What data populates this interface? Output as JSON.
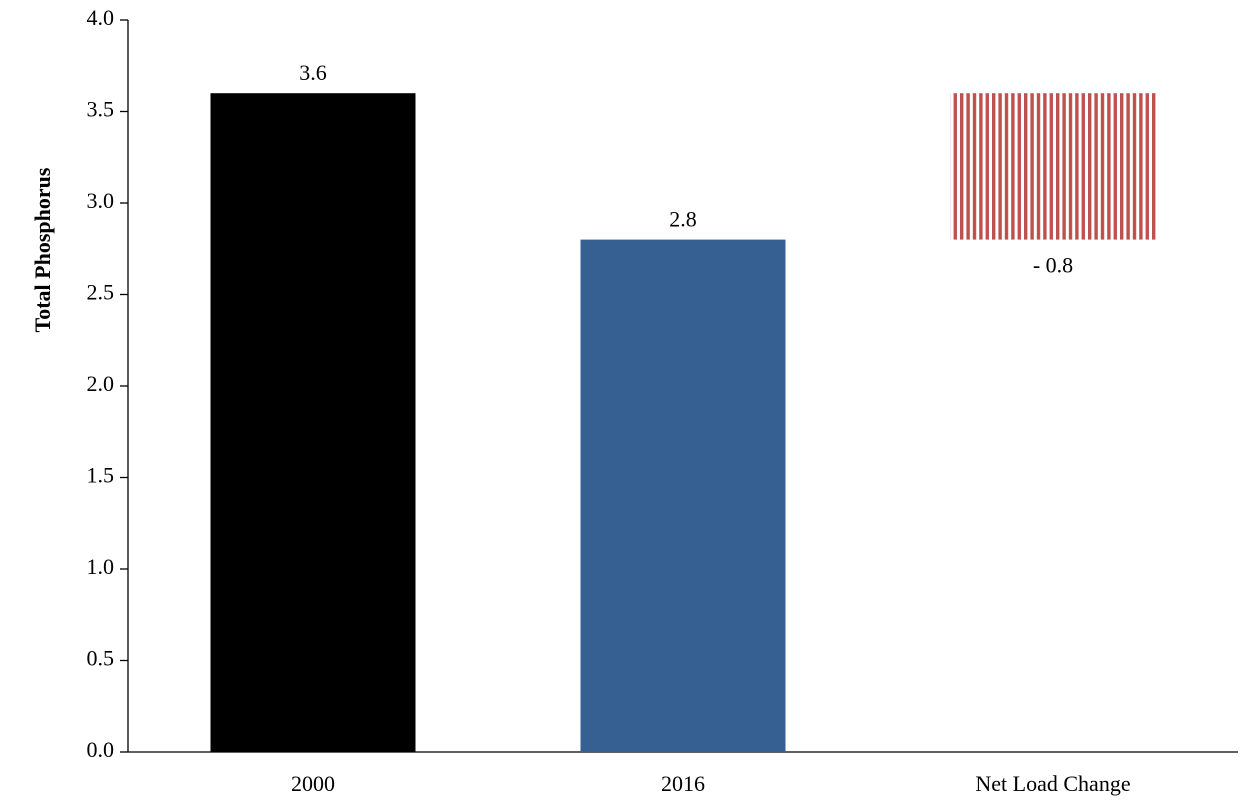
{
  "chart_data": {
    "type": "waterfall",
    "y_label": "Total Phosphorus",
    "categories": [
      "2000",
      "2016",
      "Net Load Change"
    ],
    "values": [
      3.6,
      2.8,
      -0.8
    ],
    "value_labels": [
      "3.6",
      "2.8",
      "- 0.8"
    ],
    "colors": [
      "#000000",
      "#376092",
      "#c0504d"
    ],
    "ylim": [
      0,
      4
    ],
    "yticks": [
      {
        "value": 0,
        "label": "0.0"
      },
      0.5,
      {
        "value": 1,
        "label": "1.0"
      },
      1.5,
      {
        "value": 2,
        "label": "2.0"
      },
      2.5,
      {
        "value": 3,
        "label": "3.0"
      },
      3.5,
      {
        "value": 4,
        "label": "4.0"
      }
    ],
    "grid": false
  }
}
